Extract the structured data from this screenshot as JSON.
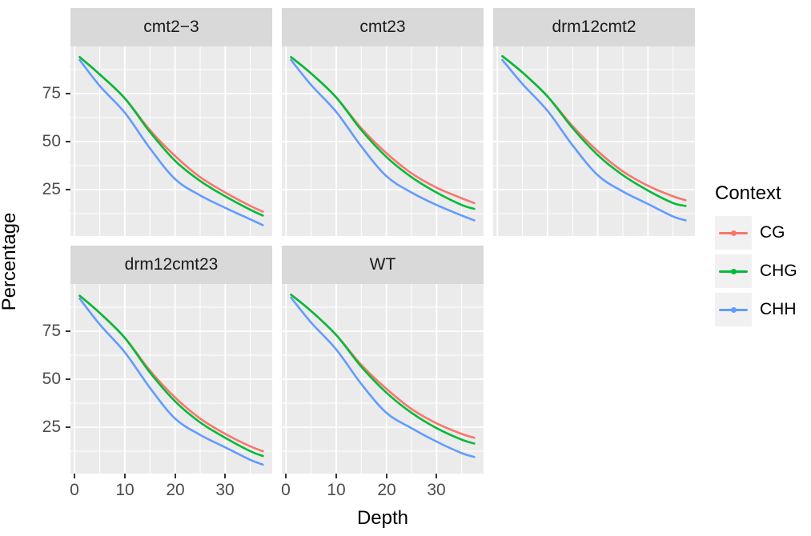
{
  "chart_data": {
    "type": "line",
    "title": "",
    "xlabel": "Depth",
    "ylabel": "Percentage",
    "facet_variable_values": [
      "cmt2−3",
      "cmt23",
      "drm12cmt2",
      "drm12cmt23",
      "WT"
    ],
    "xlim": [
      -0.84,
      39.36
    ],
    "ylim": [
      0.83,
      99.58
    ],
    "x_major_ticks": [
      0,
      10,
      20,
      30
    ],
    "x_minor_ticks": [
      5,
      15,
      25,
      35
    ],
    "y_major_ticks": [
      75,
      50,
      25
    ],
    "y_minor_ticks": [
      12.5,
      37.5,
      62.5,
      87.5
    ],
    "grid": "on",
    "panel_background": "#EBEBEB",
    "strip_background": "#D9D9D9",
    "gridline_color": "#FFFFFF",
    "legend": {
      "title": "Context",
      "position": "right",
      "entries": [
        {
          "label": "CG",
          "color": "#F8766D"
        },
        {
          "label": "CHG",
          "color": "#00BA38"
        },
        {
          "label": "CHH",
          "color": "#619CFF"
        }
      ]
    },
    "x": [
      1,
      5,
      10,
      15,
      20,
      25,
      30,
      35,
      37.5
    ],
    "facets": [
      {
        "label": "cmt2−3",
        "series": [
          {
            "name": "CG",
            "color": "#F8766D",
            "values": [
              94.0,
              85.0,
              72.5,
              56.0,
              42.5,
              31.5,
              23.5,
              16.5,
              13.5
            ]
          },
          {
            "name": "CHG",
            "color": "#00BA38",
            "values": [
              94.0,
              85.0,
              72.5,
              55.0,
              40.0,
              29.5,
              21.5,
              14.5,
              11.5
            ]
          },
          {
            "name": "CHH",
            "color": "#619CFF",
            "values": [
              92.5,
              79.0,
              65.0,
              46.5,
              30.5,
              22.0,
              15.5,
              9.5,
              6.5
            ]
          }
        ]
      },
      {
        "label": "cmt23",
        "series": [
          {
            "name": "CG",
            "color": "#F8766D",
            "values": [
              94.0,
              85.5,
              73.0,
              57.0,
              44.0,
              33.5,
              26.0,
              20.5,
              18.0
            ]
          },
          {
            "name": "CHG",
            "color": "#00BA38",
            "values": [
              94.0,
              85.5,
              73.0,
              56.0,
              42.0,
              31.5,
              23.5,
              17.0,
              15.0
            ]
          },
          {
            "name": "CHH",
            "color": "#619CFF",
            "values": [
              92.5,
              79.5,
              65.5,
              47.5,
              32.0,
              23.5,
              17.0,
              11.5,
              9.0
            ]
          }
        ]
      },
      {
        "label": "drm12cmt2",
        "series": [
          {
            "name": "CG",
            "color": "#F8766D",
            "values": [
              94.5,
              86.0,
              73.5,
              58.0,
              45.0,
              34.5,
              27.0,
              21.5,
              19.5
            ]
          },
          {
            "name": "CHG",
            "color": "#00BA38",
            "values": [
              94.5,
              86.0,
              73.5,
              57.0,
              43.0,
              32.5,
              24.5,
              18.0,
              16.5
            ]
          },
          {
            "name": "CHH",
            "color": "#619CFF",
            "values": [
              92.5,
              80.0,
              66.0,
              48.0,
              32.5,
              24.0,
              17.5,
              11.0,
              9.0
            ]
          }
        ]
      },
      {
        "label": "drm12cmt23",
        "series": [
          {
            "name": "CG",
            "color": "#F8766D",
            "values": [
              93.5,
              84.5,
              71.5,
              54.5,
              40.5,
              29.5,
              21.5,
              15.0,
              12.5
            ]
          },
          {
            "name": "CHG",
            "color": "#00BA38",
            "values": [
              93.5,
              84.5,
              71.5,
              53.5,
              38.5,
              27.5,
              19.5,
              12.5,
              10.0
            ]
          },
          {
            "name": "CHH",
            "color": "#619CFF",
            "values": [
              92.0,
              78.5,
              64.0,
              45.5,
              29.5,
              21.0,
              14.5,
              8.0,
              5.5
            ]
          }
        ]
      },
      {
        "label": "WT",
        "series": [
          {
            "name": "CG",
            "color": "#F8766D",
            "values": [
              94.0,
              85.5,
              73.0,
              57.5,
              45.0,
              34.5,
              27.0,
              21.5,
              19.5
            ]
          },
          {
            "name": "CHG",
            "color": "#00BA38",
            "values": [
              94.0,
              85.5,
              73.0,
              56.5,
              43.0,
              32.5,
              24.5,
              18.5,
              16.5
            ]
          },
          {
            "name": "CHH",
            "color": "#619CFF",
            "values": [
              92.5,
              79.5,
              65.5,
              47.5,
              32.5,
              24.5,
              17.5,
              11.5,
              9.5
            ]
          }
        ]
      }
    ]
  }
}
